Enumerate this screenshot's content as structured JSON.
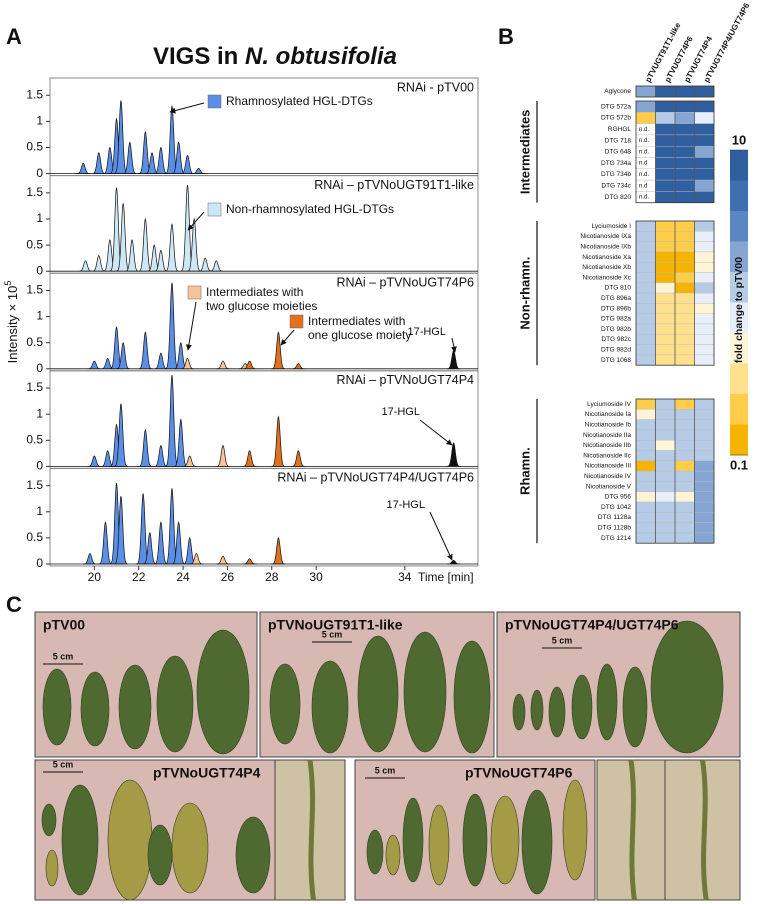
{
  "panel_a": {
    "label": "A",
    "title": "VIGS in ",
    "title_species": "N. obtusifolia",
    "y_label": "Intensity × 10",
    "y_label_exponent": "5",
    "x_label": "Time [min]",
    "xlim": [
      18,
      37.3
    ],
    "xticks": [
      20,
      22,
      24,
      26,
      28,
      30,
      34
    ],
    "ylim": [
      0,
      1.8
    ],
    "yticks": [
      0,
      0.5,
      1,
      1.5
    ],
    "traces": [
      {
        "name": "RNAi - pTV00",
        "series": [
          {
            "color": "#5b8ee6",
            "x": [
              19.5,
              20.2,
              20.7,
              21.0,
              21.2,
              21.6,
              22.3,
              22.6,
              23.0,
              23.5,
              23.8,
              24.2,
              24.7
            ],
            "values": [
              0.2,
              0.4,
              0.5,
              1.05,
              1.4,
              0.6,
              0.8,
              0.4,
              0.5,
              1.3,
              0.6,
              0.35,
              0.1
            ]
          }
        ],
        "annotations": [
          {
            "text": [
              "Rhamnosylated HGL-DTGs"
            ],
            "color": "#5b8ee6"
          }
        ]
      },
      {
        "name": "RNAi – pTVNoUGT91T1-like",
        "series": [
          {
            "color": "#cde7f5",
            "x": [
              19.6,
              20.2,
              20.7,
              21.0,
              21.3,
              21.7,
              22.3,
              22.7,
              23.0,
              23.5,
              24.2,
              24.5,
              25.0,
              25.5
            ],
            "values": [
              0.2,
              0.3,
              0.6,
              1.6,
              1.3,
              0.6,
              1.0,
              0.5,
              0.4,
              0.9,
              1.65,
              1.0,
              0.25,
              0.2
            ]
          }
        ],
        "annotations": [
          {
            "text": [
              "Non-rhamnosylated HGL-DTGs"
            ],
            "color": "#cde7f5"
          }
        ]
      },
      {
        "name": "RNAi – pTVNoUGT74P6",
        "series": [
          {
            "color": "#5b8ee6",
            "x": [
              20.0,
              20.6,
              21.0,
              21.3,
              22.3,
              23.0,
              23.5,
              23.9
            ],
            "values": [
              0.15,
              0.2,
              0.8,
              0.5,
              0.7,
              0.3,
              1.65,
              0.5
            ]
          },
          {
            "color": "#f5c49b",
            "x": [
              24.2,
              25.8,
              26.8
            ],
            "values": [
              0.2,
              0.15,
              0.1
            ]
          },
          {
            "color": "#e0711f",
            "x": [
              27.0,
              28.3,
              29.2
            ],
            "values": [
              0.15,
              0.7,
              0.1
            ]
          },
          {
            "color": "#111111",
            "x": [
              36.2
            ],
            "values": [
              0.35
            ]
          }
        ],
        "annotations": [
          {
            "text": [
              "Intermediates with",
              "two glucose moieties"
            ],
            "color": "#f5c49b"
          },
          {
            "text": [
              "Intermediates with",
              "one glucose moiety"
            ],
            "color": "#e0711f"
          },
          {
            "text": [
              "17-HGL"
            ]
          }
        ]
      },
      {
        "name": "RNAi – pTVNoUGT74P4",
        "series": [
          {
            "color": "#5b8ee6",
            "x": [
              20.0,
              20.6,
              21.0,
              21.2,
              22.3,
              23.0,
              23.5,
              23.9
            ],
            "values": [
              0.2,
              0.3,
              0.8,
              1.2,
              0.7,
              0.4,
              1.75,
              0.9
            ]
          },
          {
            "color": "#f5c49b",
            "x": [
              24.3,
              25.8
            ],
            "values": [
              0.2,
              0.4
            ]
          },
          {
            "color": "#e0711f",
            "x": [
              27.0,
              28.3,
              29.2
            ],
            "values": [
              0.3,
              0.95,
              0.3
            ]
          },
          {
            "color": "#111111",
            "x": [
              36.2
            ],
            "values": [
              0.45
            ]
          }
        ],
        "annotations": [
          {
            "text": [
              "17-HGL"
            ]
          }
        ]
      },
      {
        "name": "RNAi – pTVNoUGT74P4/UGT74P6",
        "series": [
          {
            "color": "#5b8ee6",
            "x": [
              19.8,
              20.5,
              21.0,
              21.2,
              22.2,
              22.5,
              23.0,
              23.5,
              23.8,
              24.3
            ],
            "values": [
              0.2,
              0.8,
              1.55,
              1.3,
              1.35,
              0.6,
              0.8,
              1.45,
              0.8,
              0.5
            ]
          },
          {
            "color": "#f5c49b",
            "x": [
              24.6,
              25.8
            ],
            "values": [
              0.2,
              0.15
            ]
          },
          {
            "color": "#e0711f",
            "x": [
              27.0,
              28.3
            ],
            "values": [
              0.1,
              0.5
            ]
          },
          {
            "color": "#111111",
            "x": [
              36.2
            ],
            "values": [
              0.07
            ]
          }
        ],
        "annotations": [
          {
            "text": [
              "17-HGL"
            ]
          }
        ]
      }
    ]
  },
  "panel_b": {
    "label": "B",
    "columns": [
      "pTVUGT91T1-like",
      "pTVUGT74P6",
      "pTVUGT74P4",
      "pTVUGT74P4/UGT74P6"
    ],
    "log_scale": true,
    "clim": [
      0.1,
      10
    ],
    "cticks": [
      10,
      0.1
    ],
    "colorbar_label": "fold change to pTV00",
    "colorscale": [
      "#2f5f9e",
      "#3f6fb0",
      "#5a86c2",
      "#85a6d3",
      "#b5cbe6",
      "#e8eff8",
      "#fff4d6",
      "#ffe08c",
      "#ffcd4a",
      "#f5b400"
    ],
    "groups": [
      {
        "rows": [
          {
            "name": "Aglycone",
            "values": [
              2,
              8,
              8,
              8
            ]
          }
        ]
      },
      {
        "name": "Intermediates",
        "rows": [
          {
            "name": "DTG 572a",
            "values": [
              2,
              8,
              8,
              8
            ]
          },
          {
            "name": "DTG 572b",
            "values": [
              0.2,
              1.3,
              2.5,
              1
            ]
          },
          {
            "name": "RGHGL",
            "values": [
              null,
              8,
              8,
              8
            ],
            "value_labels": [
              "n.d.",
              null,
              null,
              null
            ]
          },
          {
            "name": "DTG 718",
            "values": [
              null,
              8,
              8,
              8
            ],
            "value_labels": [
              "n.d.",
              null,
              null,
              null
            ]
          },
          {
            "name": "DTG 648",
            "values": [
              null,
              8,
              8,
              2.5
            ],
            "value_labels": [
              "n.d.",
              null,
              null,
              null
            ]
          },
          {
            "name": "DTG 734a",
            "values": [
              null,
              8,
              8,
              8
            ],
            "value_labels": [
              "n.d",
              null,
              null,
              null
            ]
          },
          {
            "name": "DTG 734b",
            "values": [
              null,
              8,
              8,
              8
            ],
            "value_labels": [
              "n.d.",
              null,
              null,
              null
            ]
          },
          {
            "name": "DTG 734c",
            "values": [
              null,
              8,
              8,
              2.5
            ],
            "value_labels": [
              "n.d",
              null,
              null,
              null
            ]
          },
          {
            "name": "DTG 820",
            "values": [
              null,
              8,
              8,
              8
            ],
            "value_labels": [
              "n.d.",
              null,
              null,
              null
            ]
          }
        ]
      },
      {
        "name": "Non-rhamn.",
        "rows": [
          {
            "name": "Lyciumoside I",
            "values": [
              1.1,
              0.25,
              0.25,
              1.2
            ]
          },
          {
            "name": "Nicotianoside IXa",
            "values": [
              1.2,
              0.2,
              0.2,
              1
            ]
          },
          {
            "name": "Nicotianoside IXb",
            "values": [
              1.3,
              0.2,
              0.2,
              0.7
            ]
          },
          {
            "name": "Nicotianoside Xa",
            "values": [
              1.2,
              0.15,
              0.15,
              0.6
            ]
          },
          {
            "name": "Nicotianoside Xb",
            "values": [
              1.2,
              0.15,
              0.15,
              0.6
            ]
          },
          {
            "name": "Nicotianoside Xc",
            "values": [
              1.2,
              0.15,
              0.2,
              0.8
            ]
          },
          {
            "name": "DTG 810",
            "values": [
              1.1,
              0.4,
              0.15,
              1.2
            ]
          },
          {
            "name": "DTG 896a",
            "values": [
              1.2,
              0.3,
              0.3,
              1
            ]
          },
          {
            "name": "DTG 896b",
            "values": [
              1.2,
              0.3,
              0.3,
              0.6
            ]
          },
          {
            "name": "DTG 982a",
            "values": [
              1.3,
              0.3,
              0.3,
              0.7
            ]
          },
          {
            "name": "DTG 982b",
            "values": [
              1.2,
              0.3,
              0.3,
              0.8
            ]
          },
          {
            "name": "DTG 982c",
            "values": [
              1.5,
              0.3,
              0.3,
              0.9
            ]
          },
          {
            "name": "DTG 982d",
            "values": [
              1.3,
              0.3,
              0.3,
              0.7
            ]
          },
          {
            "name": "DTG 1068",
            "values": [
              1.2,
              0.3,
              0.3,
              0.8
            ]
          }
        ]
      },
      {
        "name": "Rhamn.",
        "rows": [
          {
            "name": "Lyciumoside IV",
            "values": [
              0.2,
              1.1,
              0.2,
              1.3
            ]
          },
          {
            "name": "Nicotianoside Ia",
            "values": [
              0.5,
              1.2,
              1.2,
              1.3
            ]
          },
          {
            "name": "Nicotianoside Ib",
            "values": [
              1.1,
              1.2,
              1.2,
              1.5
            ]
          },
          {
            "name": "Nicotianoside IIa",
            "values": [
              1.2,
              1.2,
              1.2,
              1.4
            ]
          },
          {
            "name": "Nicotianoside IIb",
            "values": [
              1.1,
              0.6,
              1.2,
              1.4
            ]
          },
          {
            "name": "Nicotianoside IIc",
            "values": [
              1.2,
              1.2,
              1.2,
              1.4
            ]
          },
          {
            "name": "Nicotianoside III",
            "values": [
              0.15,
              1.3,
              0.2,
              2.5
            ]
          },
          {
            "name": "Nicotianoside IV",
            "values": [
              1.2,
              1.2,
              1.2,
              2.5
            ]
          },
          {
            "name": "Nicotianoside V",
            "values": [
              1.2,
              1.2,
              1.2,
              2.5
            ]
          },
          {
            "name": "DTG 956",
            "values": [
              0.4,
              1,
              0.4,
              2
            ]
          },
          {
            "name": "DTG 1042",
            "values": [
              1.2,
              1.2,
              1.2,
              1.8
            ]
          },
          {
            "name": "DTG 1128a",
            "values": [
              1.2,
              1.2,
              1.2,
              2.5
            ]
          },
          {
            "name": "DTG 1128b",
            "values": [
              1.2,
              1.2,
              1.2,
              2.5
            ]
          },
          {
            "name": "DTG 1214",
            "values": [
              1.2,
              1.2,
              1.2,
              2.5
            ]
          }
        ]
      }
    ]
  },
  "panel_c": {
    "label": "C",
    "photos": [
      {
        "label": "pTV00",
        "scale_label": "5 cm"
      },
      {
        "label": "pTVNoUGT91T1-like",
        "scale_label": "5 cm"
      },
      {
        "label": "pTVNoUGT74P4/UGT74P6",
        "scale_label": "5 cm"
      },
      {
        "label": "pTVNoUGT74P4",
        "scale_label": "5 cm"
      },
      {
        "label": "pTVNoUGT74P6",
        "scale_label": "5 cm"
      }
    ]
  }
}
